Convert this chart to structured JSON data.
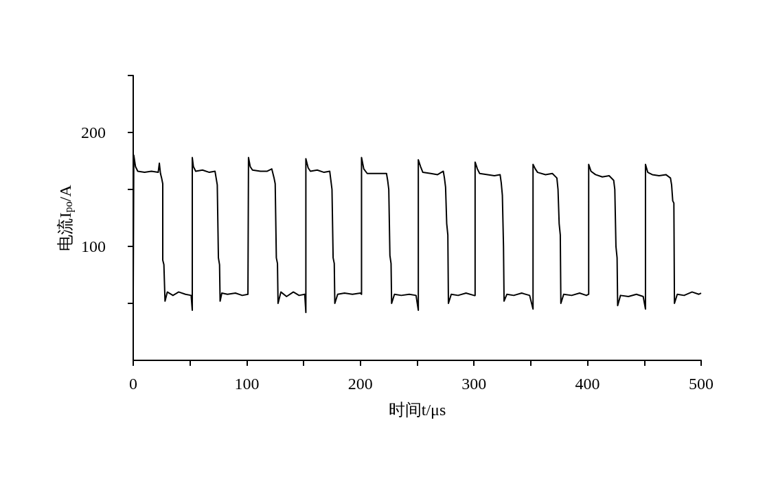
{
  "chart_data": {
    "type": "line",
    "xlabel": "时间t/μs",
    "ylabel": "电流I$_{po}$/A",
    "xlim": [
      0,
      500
    ],
    "ylim": [
      0,
      250
    ],
    "xticks": [
      0,
      {
        "value": 50,
        "label": null
      },
      100,
      {
        "value": 150,
        "label": null
      },
      200,
      {
        "value": 250,
        "label": null
      },
      300,
      {
        "value": 350,
        "label": null
      },
      400,
      {
        "value": 450,
        "label": null
      },
      500
    ],
    "yticks": [
      {
        "value": 50,
        "label": null
      },
      100,
      {
        "value": 150,
        "label": null
      },
      200,
      {
        "value": 250,
        "label": null
      }
    ],
    "grid": false,
    "marker": "none",
    "line_style": "solid",
    "series": [
      {
        "color": "#000000",
        "x": [
          0,
          0.5,
          2,
          4,
          10,
          16,
          22,
          23,
          24,
          25,
          26,
          26,
          27,
          28,
          30,
          35,
          40,
          46,
          51,
          52,
          52,
          53,
          55,
          61,
          67,
          72,
          73,
          74,
          75,
          76,
          76.5,
          78,
          83,
          90,
          96,
          101,
          101.5,
          103,
          105,
          112,
          118,
          122,
          124,
          125,
          126,
          127,
          127.5,
          130,
          135,
          141,
          146,
          151,
          152,
          152,
          154,
          156,
          162,
          168,
          173,
          174,
          175,
          176,
          177,
          177.5,
          180,
          186,
          193,
          200,
          201,
          201,
          203,
          206,
          212,
          218,
          223,
          224,
          225,
          226,
          227,
          227.5,
          230,
          236,
          243,
          249,
          251,
          251,
          253,
          255,
          262,
          268,
          273,
          274,
          275,
          276,
          277,
          277.5,
          280,
          286,
          293,
          300,
          301,
          301,
          303,
          305,
          312,
          318,
          323,
          324,
          325,
          326,
          326.5,
          329,
          335,
          342,
          349,
          352,
          352,
          354,
          356,
          363,
          369,
          373,
          374,
          375,
          376,
          376.5,
          379,
          386,
          393,
          399,
          401,
          401,
          403,
          407,
          413,
          419,
          423,
          424,
          425,
          426,
          426.5,
          429,
          436,
          443,
          449,
          451,
          451,
          453,
          457,
          463,
          469,
          473,
          474,
          475,
          476,
          476.5,
          479,
          485,
          492,
          498,
          500
        ],
        "values": [
          60,
          180,
          170,
          166,
          165,
          166,
          165,
          173,
          164,
          160,
          155,
          88,
          84,
          52,
          60,
          57,
          60,
          58,
          57,
          44,
          178,
          170,
          166,
          167,
          165,
          166,
          160,
          154,
          90,
          84,
          52,
          59,
          58,
          59,
          57,
          58,
          178,
          170,
          167,
          166,
          166,
          168,
          160,
          155,
          90,
          85,
          50,
          60,
          56,
          60,
          57,
          58,
          42,
          177,
          169,
          166,
          167,
          165,
          166,
          158,
          150,
          90,
          85,
          50,
          58,
          59,
          58,
          59,
          58,
          178,
          168,
          164,
          164,
          164,
          164,
          158,
          150,
          92,
          85,
          50,
          58,
          57,
          58,
          57,
          44,
          176,
          170,
          165,
          164,
          163,
          166,
          160,
          152,
          120,
          110,
          50,
          58,
          57,
          59,
          57,
          57,
          174,
          168,
          164,
          163,
          162,
          163,
          156,
          145,
          100,
          52,
          58,
          57,
          59,
          57,
          45,
          172,
          168,
          165,
          163,
          164,
          160,
          150,
          120,
          110,
          50,
          58,
          57,
          59,
          57,
          58,
          172,
          166,
          163,
          161,
          162,
          158,
          150,
          100,
          90,
          48,
          57,
          56,
          58,
          56,
          45,
          172,
          165,
          163,
          162,
          163,
          160,
          154,
          140,
          138,
          50,
          58,
          57,
          60,
          58,
          59
        ]
      }
    ]
  }
}
